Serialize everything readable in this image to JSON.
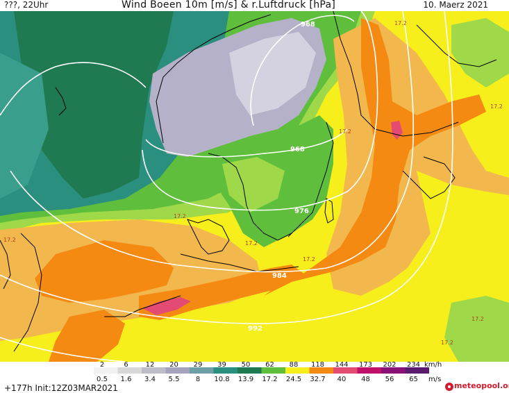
{
  "header": {
    "left_text": "???, 22Uhr",
    "title": "Wind Boeen 10m [m/s] & r.Luftdruck [hPa]",
    "date": "10. Maerz 2021"
  },
  "map": {
    "isobars": [
      {
        "value": "968"
      },
      {
        "value": "968"
      },
      {
        "value": "976"
      },
      {
        "value": "984"
      },
      {
        "value": "992"
      }
    ],
    "value_labels": [
      "17.2",
      "17.2",
      "17.2",
      "17.2",
      "17.2",
      "17.2",
      "17.2",
      "17.2",
      "17.2"
    ],
    "colors": {
      "teal": "#2a8f7e",
      "dark_green": "#1f7a52",
      "green": "#5fbe3c",
      "light_green": "#9fd94a",
      "yellow": "#f6ef1c",
      "light_orange": "#f2b84e",
      "orange": "#f58a12",
      "pink": "#e44b73",
      "grey_purple": "#b4b1c8"
    }
  },
  "legend": {
    "kmh_values": [
      "2",
      "6",
      "12",
      "20",
      "29",
      "39",
      "50",
      "62",
      "88",
      "118",
      "144",
      "173",
      "202",
      "234"
    ],
    "kmh_unit": "km/h",
    "ms_values": [
      "0.5",
      "1.6",
      "3.4",
      "5.5",
      "8",
      "10.8",
      "13.9",
      "17.2",
      "24.5",
      "32.7",
      "40",
      "48",
      "56",
      "65"
    ],
    "ms_unit": "m/s",
    "colors": [
      "#f2f2f2",
      "#d8d8d8",
      "#bdbdc8",
      "#a5a3bd",
      "#6f9fa6",
      "#2a8f7e",
      "#1f7a52",
      "#5fbe3c",
      "#f6ef1c",
      "#f58a12",
      "#e44b73",
      "#c0106a",
      "#8a1276",
      "#5a1b6e"
    ]
  },
  "footer": {
    "run_info": "+177h Init:12Z03MAR2021",
    "logo_text": "meteopool.org"
  }
}
